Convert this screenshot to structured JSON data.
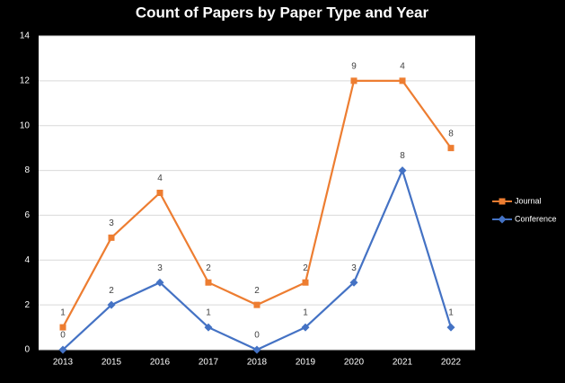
{
  "chart_data": {
    "type": "line",
    "stacked": true,
    "title": "Count of Papers by Paper Type and Year",
    "categories": [
      "2013",
      "2015",
      "2016",
      "2017",
      "2018",
      "2019",
      "2020",
      "2021",
      "2022"
    ],
    "series": [
      {
        "name": "Conference",
        "color": "#4472c4",
        "marker": "diamond",
        "values": [
          0,
          2,
          3,
          1,
          0,
          1,
          3,
          8,
          1
        ]
      },
      {
        "name": "Journal",
        "color": "#ed7d31",
        "marker": "square",
        "values": [
          1,
          3,
          4,
          2,
          2,
          2,
          9,
          4,
          8
        ]
      }
    ],
    "ylim": [
      0,
      14
    ],
    "yticks": [
      0,
      2,
      4,
      6,
      8,
      10,
      12,
      14
    ],
    "grid": true,
    "legend": "right"
  }
}
